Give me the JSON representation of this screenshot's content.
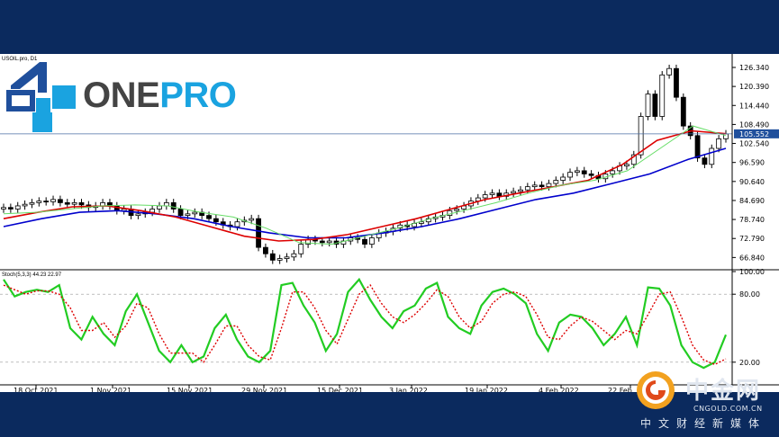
{
  "chart_data": [
    {
      "type": "candlestick",
      "symbol_label": "USOIL.pro, D1",
      "ylim": [
        63.0,
        130.0
      ],
      "yticks": [
        "126.340",
        "120.390",
        "114.440",
        "108.490",
        "102.540",
        "96.590",
        "90.640",
        "84.690",
        "78.740",
        "72.790",
        "66.840"
      ],
      "current_price_label": "105.552",
      "xticks": [
        "18 Oct 2021",
        "1 Nov 2021",
        "15 Nov 2021",
        "29 Nov 2021",
        "15 Dec 2021",
        "3 Jan 2022",
        "19 Jan 2022",
        "4 Feb 2022",
        "22 Feb"
      ],
      "candles_close": [
        82.5,
        82.0,
        83.0,
        83.5,
        84.0,
        84.5,
        84.3,
        85.0,
        84.0,
        83.5,
        84.0,
        83.3,
        82.5,
        83.0,
        84.0,
        83.0,
        81.5,
        82.0,
        80.0,
        80.5,
        81.0,
        82.0,
        83.0,
        84.0,
        82.0,
        80.0,
        80.5,
        81.0,
        80.0,
        79.0,
        78.0,
        77.0,
        76.5,
        78.0,
        78.5,
        79.0,
        70.0,
        68.0,
        66.0,
        66.5,
        67.0,
        68.0,
        71.0,
        72.5,
        72.0,
        71.5,
        72.0,
        71.0,
        72.0,
        73.0,
        72.5,
        71.0,
        73.0,
        74.5,
        75.0,
        76.0,
        77.0,
        76.5,
        77.5,
        78.0,
        79.0,
        79.5,
        80.0,
        81.5,
        82.0,
        83.0,
        84.5,
        85.5,
        86.5,
        87.0,
        86.0,
        87.0,
        87.5,
        88.0,
        89.0,
        89.5,
        89.0,
        90.0,
        91.0,
        92.0,
        93.5,
        94.0,
        93.0,
        92.5,
        91.5,
        93.0,
        94.0,
        95.5,
        96.0,
        99.0,
        111.0,
        118.0,
        111.0,
        124.0,
        126.0,
        117.0,
        108.0,
        105.0,
        98.0,
        96.0,
        101.0,
        104.0,
        105.552
      ],
      "ma_green_approx": [
        80.5,
        81.0,
        82.0,
        83.0,
        83.3,
        83.0,
        81.0,
        79.5,
        76.0,
        71.5,
        71.0,
        73.5,
        76.0,
        79.0,
        81.5,
        84.0,
        87.0,
        89.5,
        91.0,
        94.0,
        101.0,
        108.0,
        105.0
      ],
      "ma_red_approx": [
        79.0,
        81.0,
        82.7,
        83.0,
        81.5,
        79.5,
        76.5,
        73.5,
        72.0,
        72.5,
        74.0,
        76.5,
        79.0,
        82.0,
        85.0,
        87.0,
        89.0,
        91.0,
        96.0,
        103.5,
        106.5,
        105.6
      ],
      "ma_blue_approx": [
        76.5,
        79.0,
        81.0,
        81.5,
        80.5,
        79.0,
        76.5,
        74.5,
        73.0,
        73.0,
        74.5,
        76.5,
        79.0,
        82.0,
        85.0,
        87.0,
        90.0,
        93.0,
        97.5,
        101.0
      ]
    },
    {
      "type": "line",
      "indicator_label": "Stoch(5,3,3) 44.23 22.97",
      "ylim": [
        0,
        100
      ],
      "yticks": [
        "100.00",
        "80.00",
        "20.00"
      ],
      "series": [
        {
          "values": [
            93,
            78,
            82,
            84,
            82,
            88,
            50,
            40,
            60,
            45,
            35,
            65,
            80,
            55,
            30,
            20,
            35,
            20,
            25,
            50,
            62,
            40,
            25,
            20,
            30,
            88,
            90,
            70,
            55,
            30,
            45,
            82,
            93,
            75,
            60,
            50,
            65,
            70,
            85,
            90,
            60,
            50,
            45,
            70,
            82,
            85,
            80,
            72,
            45,
            30,
            55,
            62,
            60,
            50,
            35,
            45,
            60,
            35,
            86,
            85,
            70,
            35,
            20,
            15,
            20,
            44.23
          ]
        },
        {
          "values": [
            88,
            84,
            80,
            83,
            83,
            80,
            68,
            48,
            48,
            55,
            42,
            52,
            72,
            68,
            45,
            28,
            28,
            28,
            20,
            35,
            52,
            52,
            35,
            25,
            22,
            50,
            82,
            82,
            68,
            48,
            36,
            58,
            80,
            88,
            72,
            60,
            55,
            62,
            72,
            84,
            78,
            60,
            50,
            56,
            72,
            80,
            82,
            78,
            62,
            42,
            40,
            52,
            60,
            56,
            48,
            40,
            48,
            45,
            62,
            80,
            82,
            60,
            35,
            22,
            18,
            22.97
          ]
        }
      ]
    }
  ],
  "logo": {
    "text_a": "ONE",
    "text_b": "PRO"
  },
  "brand": {
    "cn": "中金网",
    "url": "CNGOLD.COM.CN",
    "slogan": "中文财经新媒体"
  },
  "colors": {
    "up": "#ffffff",
    "down": "#000000",
    "ma_green": "#66dd66",
    "ma_red": "#dd0000",
    "ma_blue": "#0000cc",
    "stoch_main": "#22cc22",
    "stoch_signal": "#dd0000",
    "price_line": "#4a6fa5",
    "header": "#0b2a5e"
  }
}
